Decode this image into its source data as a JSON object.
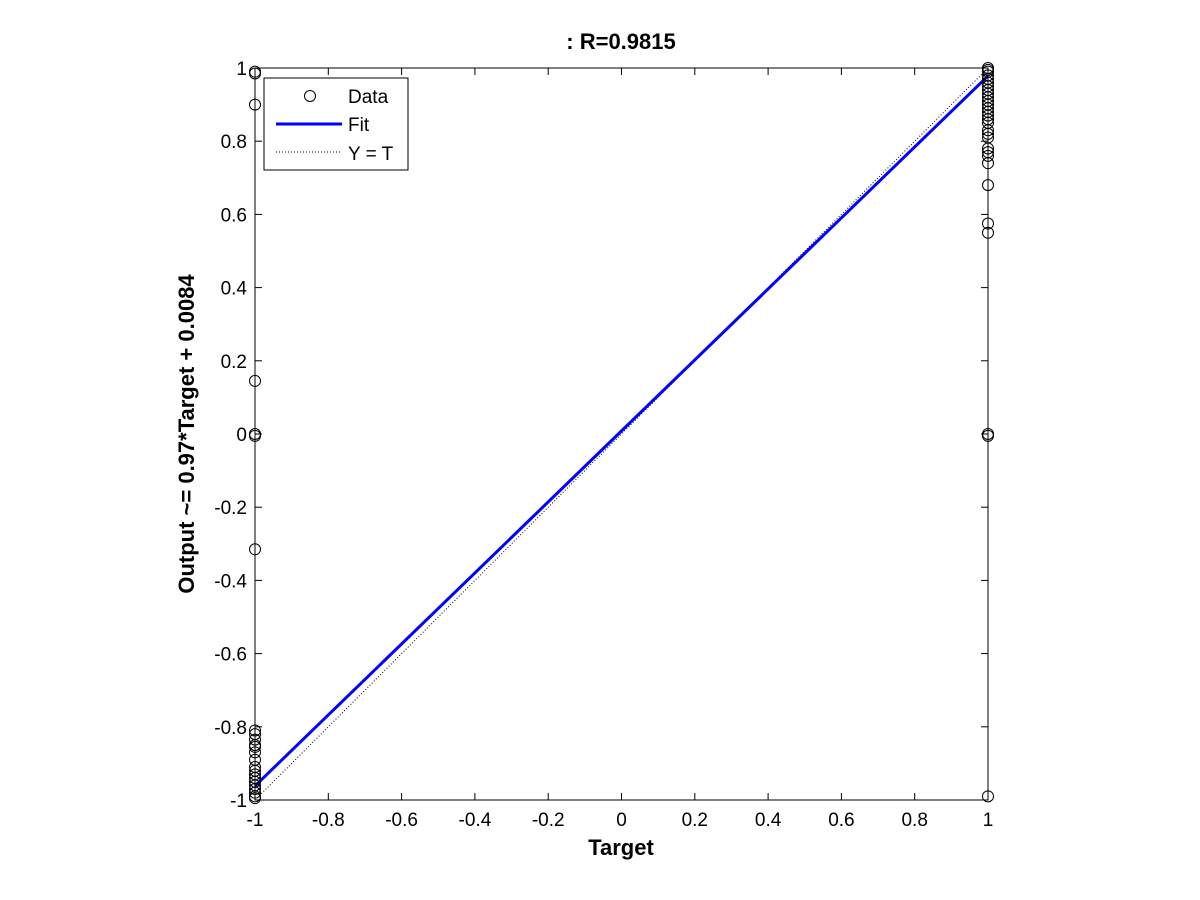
{
  "chart_data": {
    "type": "scatter",
    "title": ": R=0.9815",
    "xlabel": "Target",
    "ylabel": "Output ~= 0.97*Target + 0.0084",
    "xlim": [
      -1,
      1
    ],
    "ylim": [
      -1,
      1
    ],
    "xticks": [
      "-1",
      "-0.8",
      "-0.6",
      "-0.4",
      "-0.2",
      "0",
      "0.2",
      "0.4",
      "0.6",
      "0.8",
      "1"
    ],
    "yticks": [
      "-1",
      "-0.8",
      "-0.6",
      "-0.4",
      "-0.2",
      "0",
      "0.2",
      "0.4",
      "0.6",
      "0.8",
      "1"
    ],
    "grid": false,
    "legend_position": "top-left",
    "legend": [
      "Data",
      "Fit",
      "Y = T"
    ],
    "fit": {
      "slope": 0.97,
      "intercept": 0.0084
    },
    "series": [
      {
        "name": "Data",
        "points": [
          [
            -1,
            0.99
          ],
          [
            -1,
            0.985
          ],
          [
            -1,
            0.9
          ],
          [
            -1,
            0.145
          ],
          [
            -1,
            0.0
          ],
          [
            -1,
            -0.005
          ],
          [
            -1,
            -0.315
          ],
          [
            -1,
            -0.81
          ],
          [
            -1,
            -0.82
          ],
          [
            -1,
            -0.835
          ],
          [
            -1,
            -0.85
          ],
          [
            -1,
            -0.855
          ],
          [
            -1,
            -0.87
          ],
          [
            -1,
            -0.89
          ],
          [
            -1,
            -0.91
          ],
          [
            -1,
            -0.92
          ],
          [
            -1,
            -0.93
          ],
          [
            -1,
            -0.94
          ],
          [
            -1,
            -0.95
          ],
          [
            -1,
            -0.96
          ],
          [
            -1,
            -0.97
          ],
          [
            -1,
            -0.98
          ],
          [
            -1,
            -0.99
          ],
          [
            -1,
            -0.995
          ],
          [
            1,
            1.0
          ],
          [
            1,
            0.995
          ],
          [
            1,
            0.99
          ],
          [
            1,
            0.98
          ],
          [
            1,
            0.97
          ],
          [
            1,
            0.96
          ],
          [
            1,
            0.95
          ],
          [
            1,
            0.94
          ],
          [
            1,
            0.93
          ],
          [
            1,
            0.92
          ],
          [
            1,
            0.91
          ],
          [
            1,
            0.9
          ],
          [
            1,
            0.89
          ],
          [
            1,
            0.88
          ],
          [
            1,
            0.87
          ],
          [
            1,
            0.86
          ],
          [
            1,
            0.85
          ],
          [
            1,
            0.83
          ],
          [
            1,
            0.82
          ],
          [
            1,
            0.81
          ],
          [
            1,
            0.78
          ],
          [
            1,
            0.77
          ],
          [
            1,
            0.76
          ],
          [
            1,
            0.74
          ],
          [
            1,
            0.68
          ],
          [
            1,
            0.575
          ],
          [
            1,
            0.55
          ],
          [
            1,
            0.0
          ],
          [
            1,
            -0.005
          ],
          [
            1,
            -0.99
          ]
        ]
      }
    ]
  },
  "colors": {
    "fit_line": "#0000ff",
    "identity_line": "#000000",
    "markers": "#000000",
    "axes": "#000000",
    "background": "#ffffff"
  }
}
